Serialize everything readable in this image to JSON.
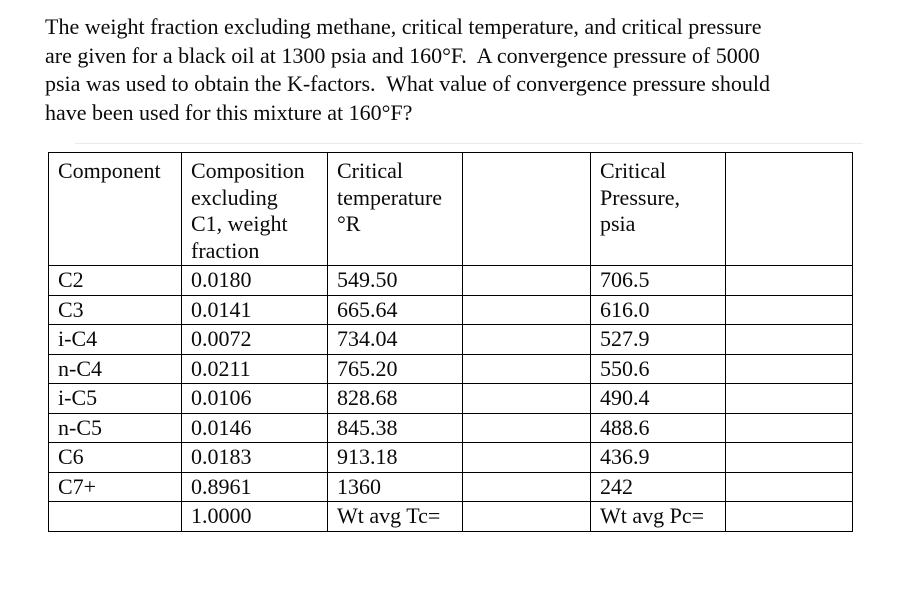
{
  "problem": {
    "lines": [
      "The weight fraction excluding methane, critical temperature, and critical pressure",
      "are given for a black oil at 1300 psia and 160°F.  A convergence pressure of 5000",
      "psia was used to obtain the K-factors.  What value of convergence pressure should",
      "have been used for this mixture at 160°F?"
    ]
  },
  "table": {
    "headers": [
      {
        "lines": [
          "Component"
        ]
      },
      {
        "lines": [
          "Composition",
          "excluding",
          "C1, weight",
          "fraction"
        ]
      },
      {
        "lines": [
          "Critical",
          "temperature",
          "°R"
        ]
      },
      {
        "lines": []
      },
      {
        "lines": [
          "Critical",
          "Pressure,",
          "psia"
        ]
      },
      {
        "lines": []
      }
    ],
    "rows": [
      {
        "cells": [
          "C2",
          "0.0180",
          "549.50",
          "",
          "706.5",
          ""
        ]
      },
      {
        "cells": [
          "C3",
          "0.0141",
          "665.64",
          "",
          "616.0",
          ""
        ]
      },
      {
        "cells": [
          "i-C4",
          "0.0072",
          "734.04",
          "",
          "527.9",
          ""
        ]
      },
      {
        "cells": [
          "n-C4",
          "0.0211",
          "765.20",
          "",
          "550.6",
          ""
        ]
      },
      {
        "cells": [
          "i-C5",
          "0.0106",
          "828.68",
          "",
          "490.4",
          ""
        ]
      },
      {
        "cells": [
          "n-C5",
          "0.0146",
          "845.38",
          "",
          "488.6",
          ""
        ]
      },
      {
        "cells": [
          "C6",
          "0.0183",
          "913.18",
          "",
          "436.9",
          ""
        ]
      },
      {
        "cells": [
          "C7+",
          "0.8961",
          "1360",
          "",
          "242",
          ""
        ]
      },
      {
        "cells": [
          "",
          "1.0000",
          "Wt avg Tc=",
          "",
          "Wt avg Pc=",
          ""
        ]
      }
    ]
  },
  "colors": {
    "page_background": "#ffffff",
    "text": "#0a0a0a",
    "table_border": "#000000"
  }
}
